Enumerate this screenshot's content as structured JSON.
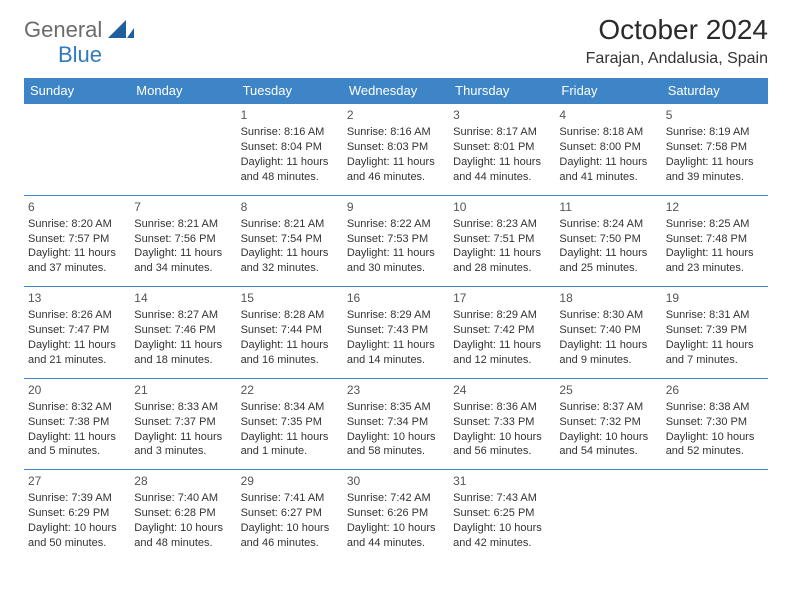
{
  "logo": {
    "word1": "General",
    "word2": "Blue"
  },
  "title": "October 2024",
  "location": "Farajan, Andalusia, Spain",
  "colors": {
    "header_bg": "#3d85c6",
    "header_text": "#ffffff",
    "border": "#3d85c6",
    "body_text": "#333333",
    "logo_gray": "#6b6b6b",
    "logo_blue": "#2f7bbf",
    "page_bg": "#ffffff"
  },
  "typography": {
    "title_fontsize": 28,
    "location_fontsize": 16,
    "dayheader_fontsize": 13,
    "cell_fontsize": 11,
    "logo_fontsize": 22
  },
  "day_headers": [
    "Sunday",
    "Monday",
    "Tuesday",
    "Wednesday",
    "Thursday",
    "Friday",
    "Saturday"
  ],
  "weeks": [
    [
      null,
      null,
      {
        "n": "1",
        "sr": "Sunrise: 8:16 AM",
        "ss": "Sunset: 8:04 PM",
        "dl": "Daylight: 11 hours and 48 minutes."
      },
      {
        "n": "2",
        "sr": "Sunrise: 8:16 AM",
        "ss": "Sunset: 8:03 PM",
        "dl": "Daylight: 11 hours and 46 minutes."
      },
      {
        "n": "3",
        "sr": "Sunrise: 8:17 AM",
        "ss": "Sunset: 8:01 PM",
        "dl": "Daylight: 11 hours and 44 minutes."
      },
      {
        "n": "4",
        "sr": "Sunrise: 8:18 AM",
        "ss": "Sunset: 8:00 PM",
        "dl": "Daylight: 11 hours and 41 minutes."
      },
      {
        "n": "5",
        "sr": "Sunrise: 8:19 AM",
        "ss": "Sunset: 7:58 PM",
        "dl": "Daylight: 11 hours and 39 minutes."
      }
    ],
    [
      {
        "n": "6",
        "sr": "Sunrise: 8:20 AM",
        "ss": "Sunset: 7:57 PM",
        "dl": "Daylight: 11 hours and 37 minutes."
      },
      {
        "n": "7",
        "sr": "Sunrise: 8:21 AM",
        "ss": "Sunset: 7:56 PM",
        "dl": "Daylight: 11 hours and 34 minutes."
      },
      {
        "n": "8",
        "sr": "Sunrise: 8:21 AM",
        "ss": "Sunset: 7:54 PM",
        "dl": "Daylight: 11 hours and 32 minutes."
      },
      {
        "n": "9",
        "sr": "Sunrise: 8:22 AM",
        "ss": "Sunset: 7:53 PM",
        "dl": "Daylight: 11 hours and 30 minutes."
      },
      {
        "n": "10",
        "sr": "Sunrise: 8:23 AM",
        "ss": "Sunset: 7:51 PM",
        "dl": "Daylight: 11 hours and 28 minutes."
      },
      {
        "n": "11",
        "sr": "Sunrise: 8:24 AM",
        "ss": "Sunset: 7:50 PM",
        "dl": "Daylight: 11 hours and 25 minutes."
      },
      {
        "n": "12",
        "sr": "Sunrise: 8:25 AM",
        "ss": "Sunset: 7:48 PM",
        "dl": "Daylight: 11 hours and 23 minutes."
      }
    ],
    [
      {
        "n": "13",
        "sr": "Sunrise: 8:26 AM",
        "ss": "Sunset: 7:47 PM",
        "dl": "Daylight: 11 hours and 21 minutes."
      },
      {
        "n": "14",
        "sr": "Sunrise: 8:27 AM",
        "ss": "Sunset: 7:46 PM",
        "dl": "Daylight: 11 hours and 18 minutes."
      },
      {
        "n": "15",
        "sr": "Sunrise: 8:28 AM",
        "ss": "Sunset: 7:44 PM",
        "dl": "Daylight: 11 hours and 16 minutes."
      },
      {
        "n": "16",
        "sr": "Sunrise: 8:29 AM",
        "ss": "Sunset: 7:43 PM",
        "dl": "Daylight: 11 hours and 14 minutes."
      },
      {
        "n": "17",
        "sr": "Sunrise: 8:29 AM",
        "ss": "Sunset: 7:42 PM",
        "dl": "Daylight: 11 hours and 12 minutes."
      },
      {
        "n": "18",
        "sr": "Sunrise: 8:30 AM",
        "ss": "Sunset: 7:40 PM",
        "dl": "Daylight: 11 hours and 9 minutes."
      },
      {
        "n": "19",
        "sr": "Sunrise: 8:31 AM",
        "ss": "Sunset: 7:39 PM",
        "dl": "Daylight: 11 hours and 7 minutes."
      }
    ],
    [
      {
        "n": "20",
        "sr": "Sunrise: 8:32 AM",
        "ss": "Sunset: 7:38 PM",
        "dl": "Daylight: 11 hours and 5 minutes."
      },
      {
        "n": "21",
        "sr": "Sunrise: 8:33 AM",
        "ss": "Sunset: 7:37 PM",
        "dl": "Daylight: 11 hours and 3 minutes."
      },
      {
        "n": "22",
        "sr": "Sunrise: 8:34 AM",
        "ss": "Sunset: 7:35 PM",
        "dl": "Daylight: 11 hours and 1 minute."
      },
      {
        "n": "23",
        "sr": "Sunrise: 8:35 AM",
        "ss": "Sunset: 7:34 PM",
        "dl": "Daylight: 10 hours and 58 minutes."
      },
      {
        "n": "24",
        "sr": "Sunrise: 8:36 AM",
        "ss": "Sunset: 7:33 PM",
        "dl": "Daylight: 10 hours and 56 minutes."
      },
      {
        "n": "25",
        "sr": "Sunrise: 8:37 AM",
        "ss": "Sunset: 7:32 PM",
        "dl": "Daylight: 10 hours and 54 minutes."
      },
      {
        "n": "26",
        "sr": "Sunrise: 8:38 AM",
        "ss": "Sunset: 7:30 PM",
        "dl": "Daylight: 10 hours and 52 minutes."
      }
    ],
    [
      {
        "n": "27",
        "sr": "Sunrise: 7:39 AM",
        "ss": "Sunset: 6:29 PM",
        "dl": "Daylight: 10 hours and 50 minutes."
      },
      {
        "n": "28",
        "sr": "Sunrise: 7:40 AM",
        "ss": "Sunset: 6:28 PM",
        "dl": "Daylight: 10 hours and 48 minutes."
      },
      {
        "n": "29",
        "sr": "Sunrise: 7:41 AM",
        "ss": "Sunset: 6:27 PM",
        "dl": "Daylight: 10 hours and 46 minutes."
      },
      {
        "n": "30",
        "sr": "Sunrise: 7:42 AM",
        "ss": "Sunset: 6:26 PM",
        "dl": "Daylight: 10 hours and 44 minutes."
      },
      {
        "n": "31",
        "sr": "Sunrise: 7:43 AM",
        "ss": "Sunset: 6:25 PM",
        "dl": "Daylight: 10 hours and 42 minutes."
      },
      null,
      null
    ]
  ]
}
